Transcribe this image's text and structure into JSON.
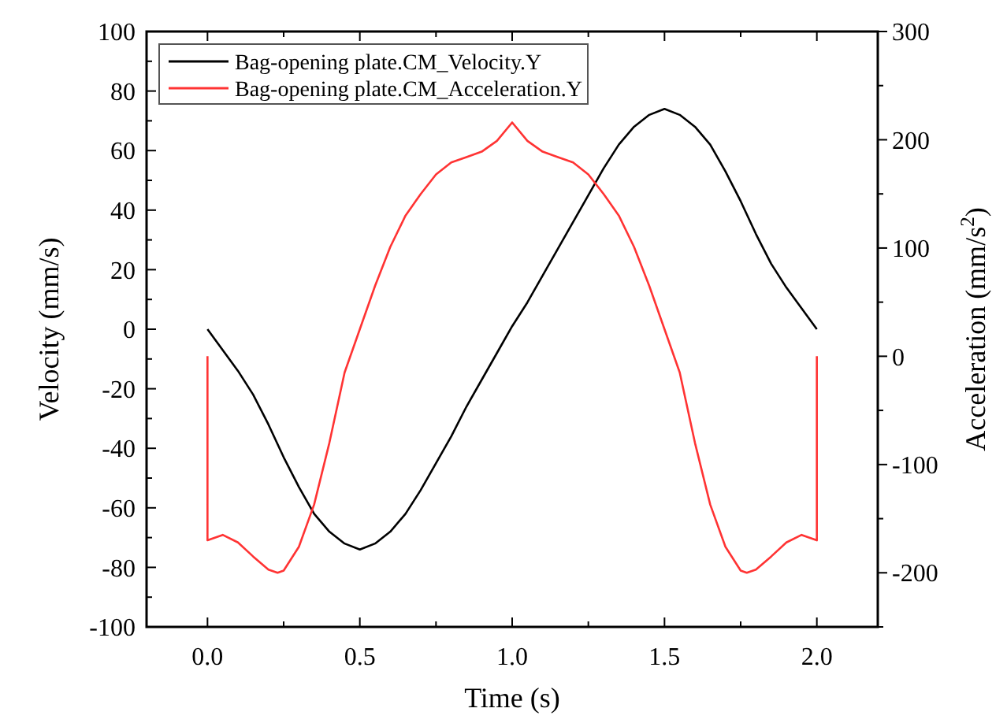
{
  "chart_data": {
    "type": "line",
    "xlabel": "Time (s)",
    "ylabel": "Velocity (mm/s)",
    "y2label": "Acceleration (mm/s$^{2}$)",
    "xlim": [
      -0.2,
      2.2
    ],
    "xticks": [
      {
        "value": 0,
        "label": "0.0"
      },
      {
        "value": 0.25,
        "label": null
      },
      {
        "value": 0.5,
        "label": "0.5"
      },
      {
        "value": 0.75,
        "label": null
      },
      {
        "value": 1,
        "label": "1.0"
      },
      {
        "value": 1.25,
        "label": null
      },
      {
        "value": 1.5,
        "label": "1.5"
      },
      {
        "value": 1.75,
        "label": null
      },
      {
        "value": 2,
        "label": "2.0"
      }
    ],
    "ylim": [
      -100,
      100
    ],
    "yticks": [
      -100,
      {
        "value": -90,
        "label": null
      },
      -80,
      {
        "value": -70,
        "label": null
      },
      -60,
      {
        "value": -50,
        "label": null
      },
      -40,
      {
        "value": -30,
        "label": null
      },
      -20,
      {
        "value": -10,
        "label": null
      },
      0,
      {
        "value": 10,
        "label": null
      },
      20,
      {
        "value": 30,
        "label": null
      },
      40,
      {
        "value": 50,
        "label": null
      },
      60,
      {
        "value": 70,
        "label": null
      },
      80,
      {
        "value": 90,
        "label": null
      },
      100
    ],
    "y2lim": [
      -250,
      300
    ],
    "y2ticks": [
      {
        "value": -250,
        "label": null
      },
      -200,
      {
        "value": -150,
        "label": null
      },
      -100,
      {
        "value": -50,
        "label": null
      },
      0,
      {
        "value": 50,
        "label": null
      },
      100,
      {
        "value": 150,
        "label": null
      },
      200,
      {
        "value": 250,
        "label": null
      },
      300
    ],
    "legend": "top left",
    "grid": false,
    "marker": "none",
    "line_style": "solid",
    "series": [
      {
        "name": "Bag-opening plate.CM_Velocity.Y",
        "color": "#000000",
        "x": [
          0,
          0.05,
          0.1,
          0.15,
          0.2,
          0.25,
          0.3,
          0.35,
          0.4,
          0.45,
          0.5,
          0.55,
          0.6,
          0.65,
          0.7,
          0.75,
          0.8,
          0.85,
          0.9,
          0.95,
          1,
          1.05,
          1.1,
          1.15,
          1.2,
          1.25,
          1.3,
          1.35,
          1.4,
          1.45,
          1.5,
          1.55,
          1.6,
          1.65,
          1.7,
          1.75,
          1.8,
          1.85,
          1.9,
          1.95,
          2
        ],
        "values": [
          0,
          -7,
          -14,
          -22,
          -32,
          -43,
          -53,
          -62,
          -68,
          -72,
          -74,
          -72,
          -68,
          -62,
          -54,
          -45,
          -36,
          -26,
          -17,
          -8,
          1,
          9,
          18,
          27,
          36,
          45,
          54,
          62,
          68,
          72,
          74,
          72,
          68,
          62,
          53,
          43,
          32,
          22,
          14,
          7,
          0
        ]
      },
      {
        "name": "Bag-opening plate.CM_Acceleration.Y",
        "color": "#ff3333",
        "axis": "y2",
        "x": [
          0,
          0,
          0.05,
          0.1,
          0.15,
          0.2,
          0.23,
          0.25,
          0.3,
          0.35,
          0.4,
          0.45,
          0.5,
          0.55,
          0.6,
          0.65,
          0.7,
          0.75,
          0.8,
          0.85,
          0.9,
          0.95,
          1,
          1.05,
          1.1,
          1.15,
          1.2,
          1.25,
          1.3,
          1.35,
          1.4,
          1.45,
          1.5,
          1.55,
          1.6,
          1.65,
          1.7,
          1.75,
          1.77,
          1.8,
          1.85,
          1.9,
          1.95,
          2,
          2
        ],
        "values": [
          0,
          -170,
          -165,
          -172,
          -185,
          -197,
          -200,
          -198,
          -176,
          -137,
          -80,
          -15,
          25,
          65,
          101,
          130,
          150,
          168,
          179,
          184,
          189,
          199,
          216,
          199,
          189,
          184,
          179,
          168,
          150,
          130,
          101,
          65,
          25,
          -15,
          -80,
          -137,
          -176,
          -198,
          -200,
          -197,
          -185,
          -172,
          -165,
          -170,
          0
        ]
      }
    ]
  }
}
